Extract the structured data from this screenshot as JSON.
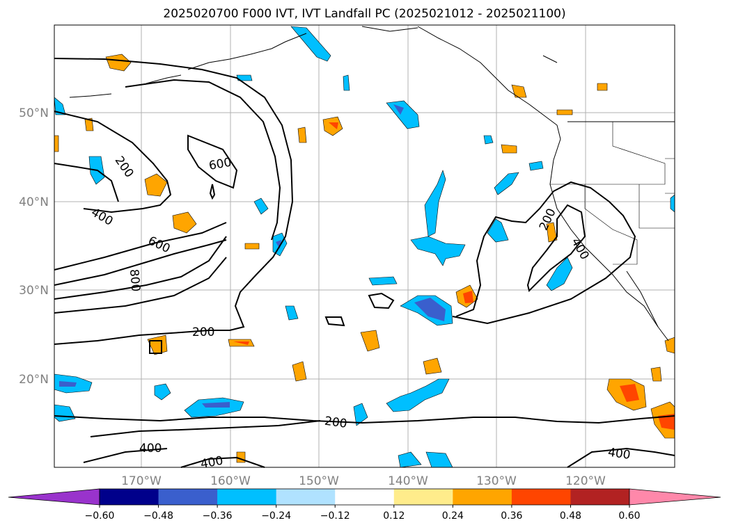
{
  "title": "2025020700 F000 IVT, IVT Landfall PC (2025021012 - 2025021100)",
  "lat_labels": [
    "50°N",
    "40°N",
    "30°N",
    "20°N"
  ],
  "lon_labels": [
    "170°W",
    "160°W",
    "150°W",
    "140°W",
    "130°W",
    "120°W"
  ],
  "colorbar": {
    "ticks": [
      "−0.60",
      "−0.48",
      "−0.36",
      "−0.24",
      "−0.12",
      "0.12",
      "0.24",
      "0.36",
      "0.48",
      "0.60"
    ],
    "colors": [
      "#9933cc",
      "#00008b",
      "#3a5fcd",
      "#00bfff",
      "#b0e2ff",
      "#ffffff",
      "#ffec8b",
      "#ffa500",
      "#ff4500",
      "#b22222",
      "#ff88aa"
    ]
  },
  "contour_labels": [
    "200",
    "600",
    "400",
    "600",
    "800",
    "200",
    "400",
    "400",
    "200",
    "400",
    "200",
    "400"
  ]
}
